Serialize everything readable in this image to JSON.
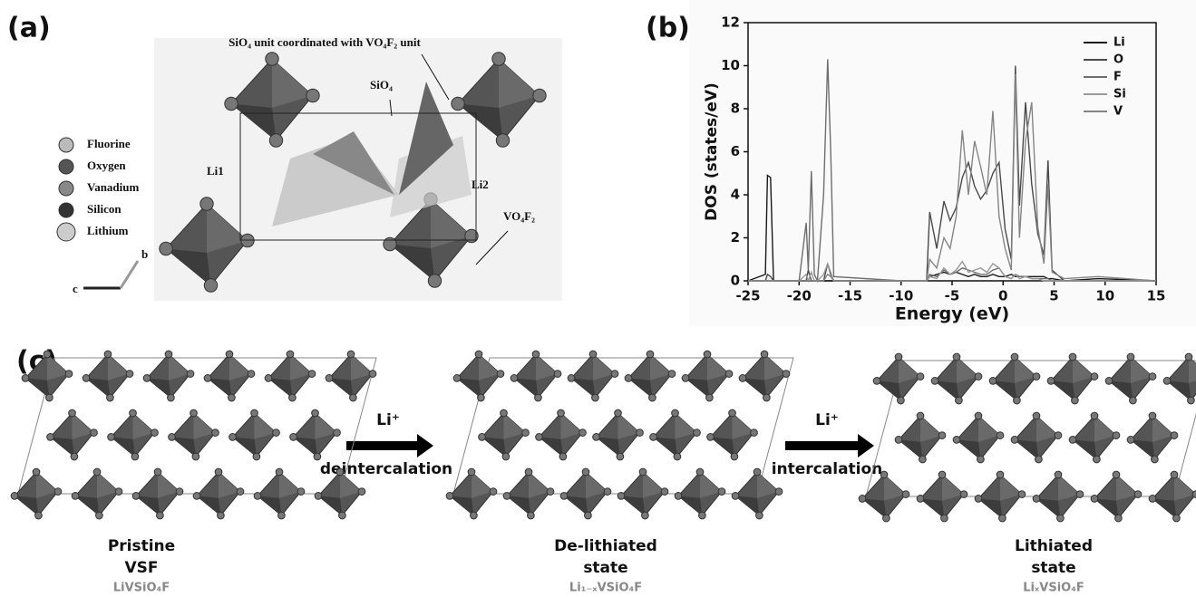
{
  "panel_a": {
    "label": "(a)",
    "title": "SiO₄ unit coordinated with VO₄F₂ unit",
    "sio4": "SiO₄",
    "li1": "Li1",
    "li2": "Li2",
    "vo4f2": "VO₄F₂",
    "legend": [
      "Fluorine",
      "Oxygen",
      "Vanadium",
      "Silicon",
      "Lithium"
    ],
    "axis_b": "b",
    "axis_c": "c"
  },
  "chart_data": {
    "type": "line",
    "panel_label": "(b)",
    "xlabel": "Energy (eV)",
    "ylabel": "DOS (states/eV)",
    "x": [
      -25,
      -23.3,
      -23.1,
      -22.8,
      -22.5,
      -20,
      -19.3,
      -19.1,
      -18.8,
      -18.5,
      -18.2,
      -17.6,
      -17.2,
      -16.9,
      -16.6,
      -10,
      -7.5,
      -7.2,
      -6.5,
      -5.8,
      -5.2,
      -4.6,
      -4,
      -3.4,
      -2.8,
      -2.2,
      -1.6,
      -1,
      -0.4,
      0.2,
      0.8,
      1.2,
      1.6,
      2.2,
      2.8,
      3.4,
      4,
      4.4,
      4.8,
      6,
      9.3,
      15
    ],
    "series": [
      {
        "name": "Li",
        "color": "#1a1a1a",
        "values": [
          0,
          0.3,
          4.9,
          4.8,
          0,
          0,
          0,
          0,
          0,
          0,
          0,
          0,
          0,
          0,
          0,
          0,
          0,
          0.2,
          0.3,
          0.4,
          0.3,
          0.4,
          0.3,
          0.2,
          0.3,
          0.2,
          0.2,
          0.3,
          0.2,
          0.2,
          0.3,
          0.2,
          0.2,
          0.2,
          0.2,
          0.2,
          0.2,
          0.1,
          0.1,
          0,
          0.1,
          0
        ]
      },
      {
        "name": "O",
        "color": "#4a4a4a",
        "values": [
          0,
          0,
          0.3,
          0.2,
          0,
          0,
          0,
          0.5,
          0,
          0,
          0,
          0,
          0.8,
          0.3,
          0,
          0,
          0,
          3.2,
          1.5,
          3.7,
          2.8,
          3.4,
          4.8,
          5.5,
          4.4,
          3.8,
          4.2,
          5.0,
          5.5,
          2.4,
          1.0,
          10.0,
          3.5,
          8.3,
          4.5,
          2.2,
          1.2,
          5.6,
          0.5,
          0,
          0,
          0
        ]
      },
      {
        "name": "F",
        "color": "#6e6e6e",
        "values": [
          0,
          0,
          0,
          0,
          0,
          0,
          2.7,
          0.5,
          5.1,
          0.3,
          0,
          4.0,
          10.3,
          6.1,
          0.2,
          0,
          0,
          0.3,
          0.2,
          0.5,
          0.3,
          0.4,
          0.6,
          0.5,
          0.4,
          0.3,
          0.3,
          0.5,
          0.6,
          0.2,
          0.1,
          0.3,
          0.2,
          0.2,
          0.1,
          0.1,
          0.1,
          0.1,
          0,
          0,
          0,
          0
        ]
      },
      {
        "name": "Si",
        "color": "#9a9a9a",
        "values": [
          0,
          0,
          0,
          0,
          0,
          0,
          0.3,
          0,
          0.4,
          0,
          0,
          0.3,
          0.8,
          0.4,
          0,
          0,
          0,
          0.2,
          0.1,
          0.6,
          0.3,
          0.5,
          0.9,
          0.4,
          0.5,
          0.6,
          0.4,
          0.8,
          0.6,
          0.2,
          0.1,
          0.3,
          0.1,
          0.2,
          0.1,
          0.1,
          0,
          0,
          0,
          0,
          0,
          0
        ]
      },
      {
        "name": "V",
        "color": "#858585",
        "values": [
          0,
          0,
          0,
          0,
          0,
          0,
          0,
          0,
          0,
          0,
          0,
          0,
          0.3,
          0.2,
          0,
          0,
          0,
          1.0,
          0.6,
          2.0,
          1.5,
          3.0,
          7.0,
          4.0,
          6.5,
          5.3,
          4.0,
          7.9,
          3.0,
          1.5,
          0.5,
          9.6,
          2.0,
          6.5,
          8.3,
          2.5,
          0.8,
          4.5,
          0.4,
          0.1,
          0.2,
          0
        ]
      }
    ],
    "xlim": [
      -25,
      15
    ],
    "xticks": [
      -25,
      -20,
      -15,
      -10,
      -5,
      0,
      5,
      10,
      15
    ],
    "ylim": [
      0,
      12
    ],
    "yticks": [
      0,
      2,
      4,
      6,
      8,
      10,
      12
    ],
    "legend": "upper right"
  },
  "panel_c": {
    "label": "(c)",
    "arrows": [
      {
        "ion": "Li⁺",
        "process": "deintercalation"
      },
      {
        "ion": "Li⁺",
        "process": "intercalation"
      }
    ],
    "states": [
      {
        "name": [
          "Pristine",
          "VSF"
        ],
        "formula": "LiVSiO₄F"
      },
      {
        "name": [
          "De-lithiated",
          "state"
        ],
        "formula": "Li₁₋ₓVSiO₄F"
      },
      {
        "name": [
          "Lithiated",
          "state"
        ],
        "formula": "LiₓVSiO₄F"
      }
    ]
  }
}
